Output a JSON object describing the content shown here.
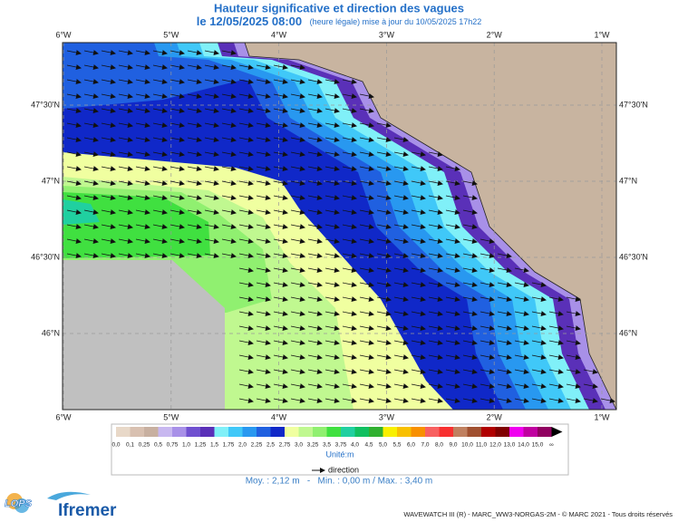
{
  "title": "Hauteur significative et direction des vagues",
  "date": "le 12/05/2025 08:00",
  "update": "(heure légale) mise à jour du 10/05/2025 17h22",
  "lon_labels": [
    "6°W",
    "5°W",
    "4°W",
    "3°W",
    "2°W",
    "1°W"
  ],
  "lat_labels": [
    "47°30'N",
    "47°N",
    "46°30'N",
    "46°N"
  ],
  "colorbar": {
    "labels": [
      "0,0",
      "0,1",
      "0,25",
      "0,5",
      "0,75",
      "1,0",
      "1,25",
      "1,5",
      "1,75",
      "2,0",
      "2,25",
      "2,5",
      "2,75",
      "3,0",
      "3,25",
      "3,5",
      "3,75",
      "4,0",
      "4,5",
      "5,0",
      "5,5",
      "6,0",
      "7,0",
      "8,0",
      "9,0",
      "10,0",
      "11,0",
      "12,0",
      "13,0",
      "14,0",
      "15,0",
      "∞"
    ],
    "colors": [
      "#e8d8c8",
      "#d8c0b0",
      "#c8b0a0",
      "#c8b8f0",
      "#a890e8",
      "#7050d0",
      "#5a30b8",
      "#80f0f8",
      "#40c8f8",
      "#2898f0",
      "#2060e0",
      "#1028c8",
      "#f0ffa0",
      "#c0f890",
      "#90f070",
      "#40e040",
      "#20d0a0",
      "#10c060",
      "#30b030",
      "#f8f000",
      "#f8c000",
      "#f89000",
      "#f86060",
      "#f83030",
      "#c08060",
      "#a05030",
      "#b00000",
      "#800000",
      "#f000f0",
      "#c000a0",
      "#900060"
    ],
    "unit": "Unité:m"
  },
  "direction": "direction",
  "stats": "Moy. : 2,12 m   -   Min. : 0,00 m / Max. : 3,40 m",
  "logo_lops": "LOPS",
  "logo_ifremer": "Ifremer",
  "footer": "WAVEWATCH III (R) - MARC_WW3-NORGAS-2M - © MARC 2021 - Tous droits réservés"
}
